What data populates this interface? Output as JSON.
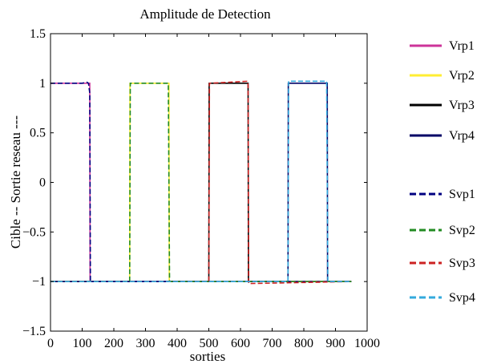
{
  "chart_data": {
    "type": "line",
    "title": "Amplitude de Detection",
    "xlabel": "sorties",
    "ylabel": "Cible -- Sortie reseau ---",
    "xlim": [
      0,
      1000
    ],
    "ylim": [
      -1.5,
      1.5
    ],
    "xticks": [
      0,
      100,
      200,
      300,
      400,
      500,
      600,
      700,
      800,
      900,
      1000
    ],
    "yticks": [
      1.5,
      1,
      0.5,
      0,
      -0.5,
      -1,
      -1.5
    ],
    "xtick_labels": [
      "0",
      "100",
      "200",
      "300",
      "400",
      "500",
      "600",
      "700",
      "800",
      "900",
      "1000"
    ],
    "ytick_labels": [
      "1.5",
      "1",
      "0.5",
      "0",
      "−0.5",
      "−1",
      "−1.5"
    ],
    "grid": false,
    "legend_position": "right-outside",
    "series": [
      {
        "name": "Vrp1",
        "color": "#cc3399",
        "style": "solid",
        "x": [
          0,
          124,
          125,
          950
        ],
        "y": [
          1,
          1,
          -1,
          -1
        ]
      },
      {
        "name": "Vrp2",
        "color": "#ffee33",
        "style": "solid",
        "x": [
          0,
          250,
          251,
          374,
          375,
          950
        ],
        "y": [
          -1,
          -1,
          1,
          1,
          -1,
          -1
        ]
      },
      {
        "name": "Vrp3",
        "color": "#000000",
        "style": "solid",
        "x": [
          0,
          500,
          501,
          624,
          625,
          950
        ],
        "y": [
          -1,
          -1,
          1,
          1,
          -1,
          -1
        ]
      },
      {
        "name": "Vrp4",
        "color": "#000066",
        "style": "solid",
        "x": [
          0,
          750,
          751,
          874,
          875,
          950
        ],
        "y": [
          -1,
          -1,
          1,
          1,
          -1,
          -1
        ]
      },
      {
        "name": "Svp1",
        "color": "#000080",
        "style": "dashed",
        "x": [
          0,
          100,
          115,
          120,
          124,
          126,
          200,
          950
        ],
        "y": [
          1,
          1,
          1.01,
          1,
          0.9,
          -1,
          -1,
          -1
        ]
      },
      {
        "name": "Svp2",
        "color": "#228b22",
        "style": "dashed",
        "x": [
          0,
          250,
          252,
          372,
          374,
          376,
          950
        ],
        "y": [
          -1,
          -1,
          1,
          1,
          0,
          -1,
          -1
        ]
      },
      {
        "name": "Svp3",
        "color": "#cc2222",
        "style": "dashed",
        "x": [
          0,
          500,
          502,
          622,
          624,
          626,
          950
        ],
        "y": [
          -1,
          -1,
          1,
          1.02,
          0.98,
          -1.02,
          -1
        ]
      },
      {
        "name": "Svp4",
        "color": "#33aadd",
        "style": "dashed",
        "x": [
          0,
          750,
          752,
          872,
          874,
          876,
          950
        ],
        "y": [
          -1,
          -1,
          1.02,
          1.02,
          0,
          -1,
          -1
        ]
      }
    ]
  }
}
